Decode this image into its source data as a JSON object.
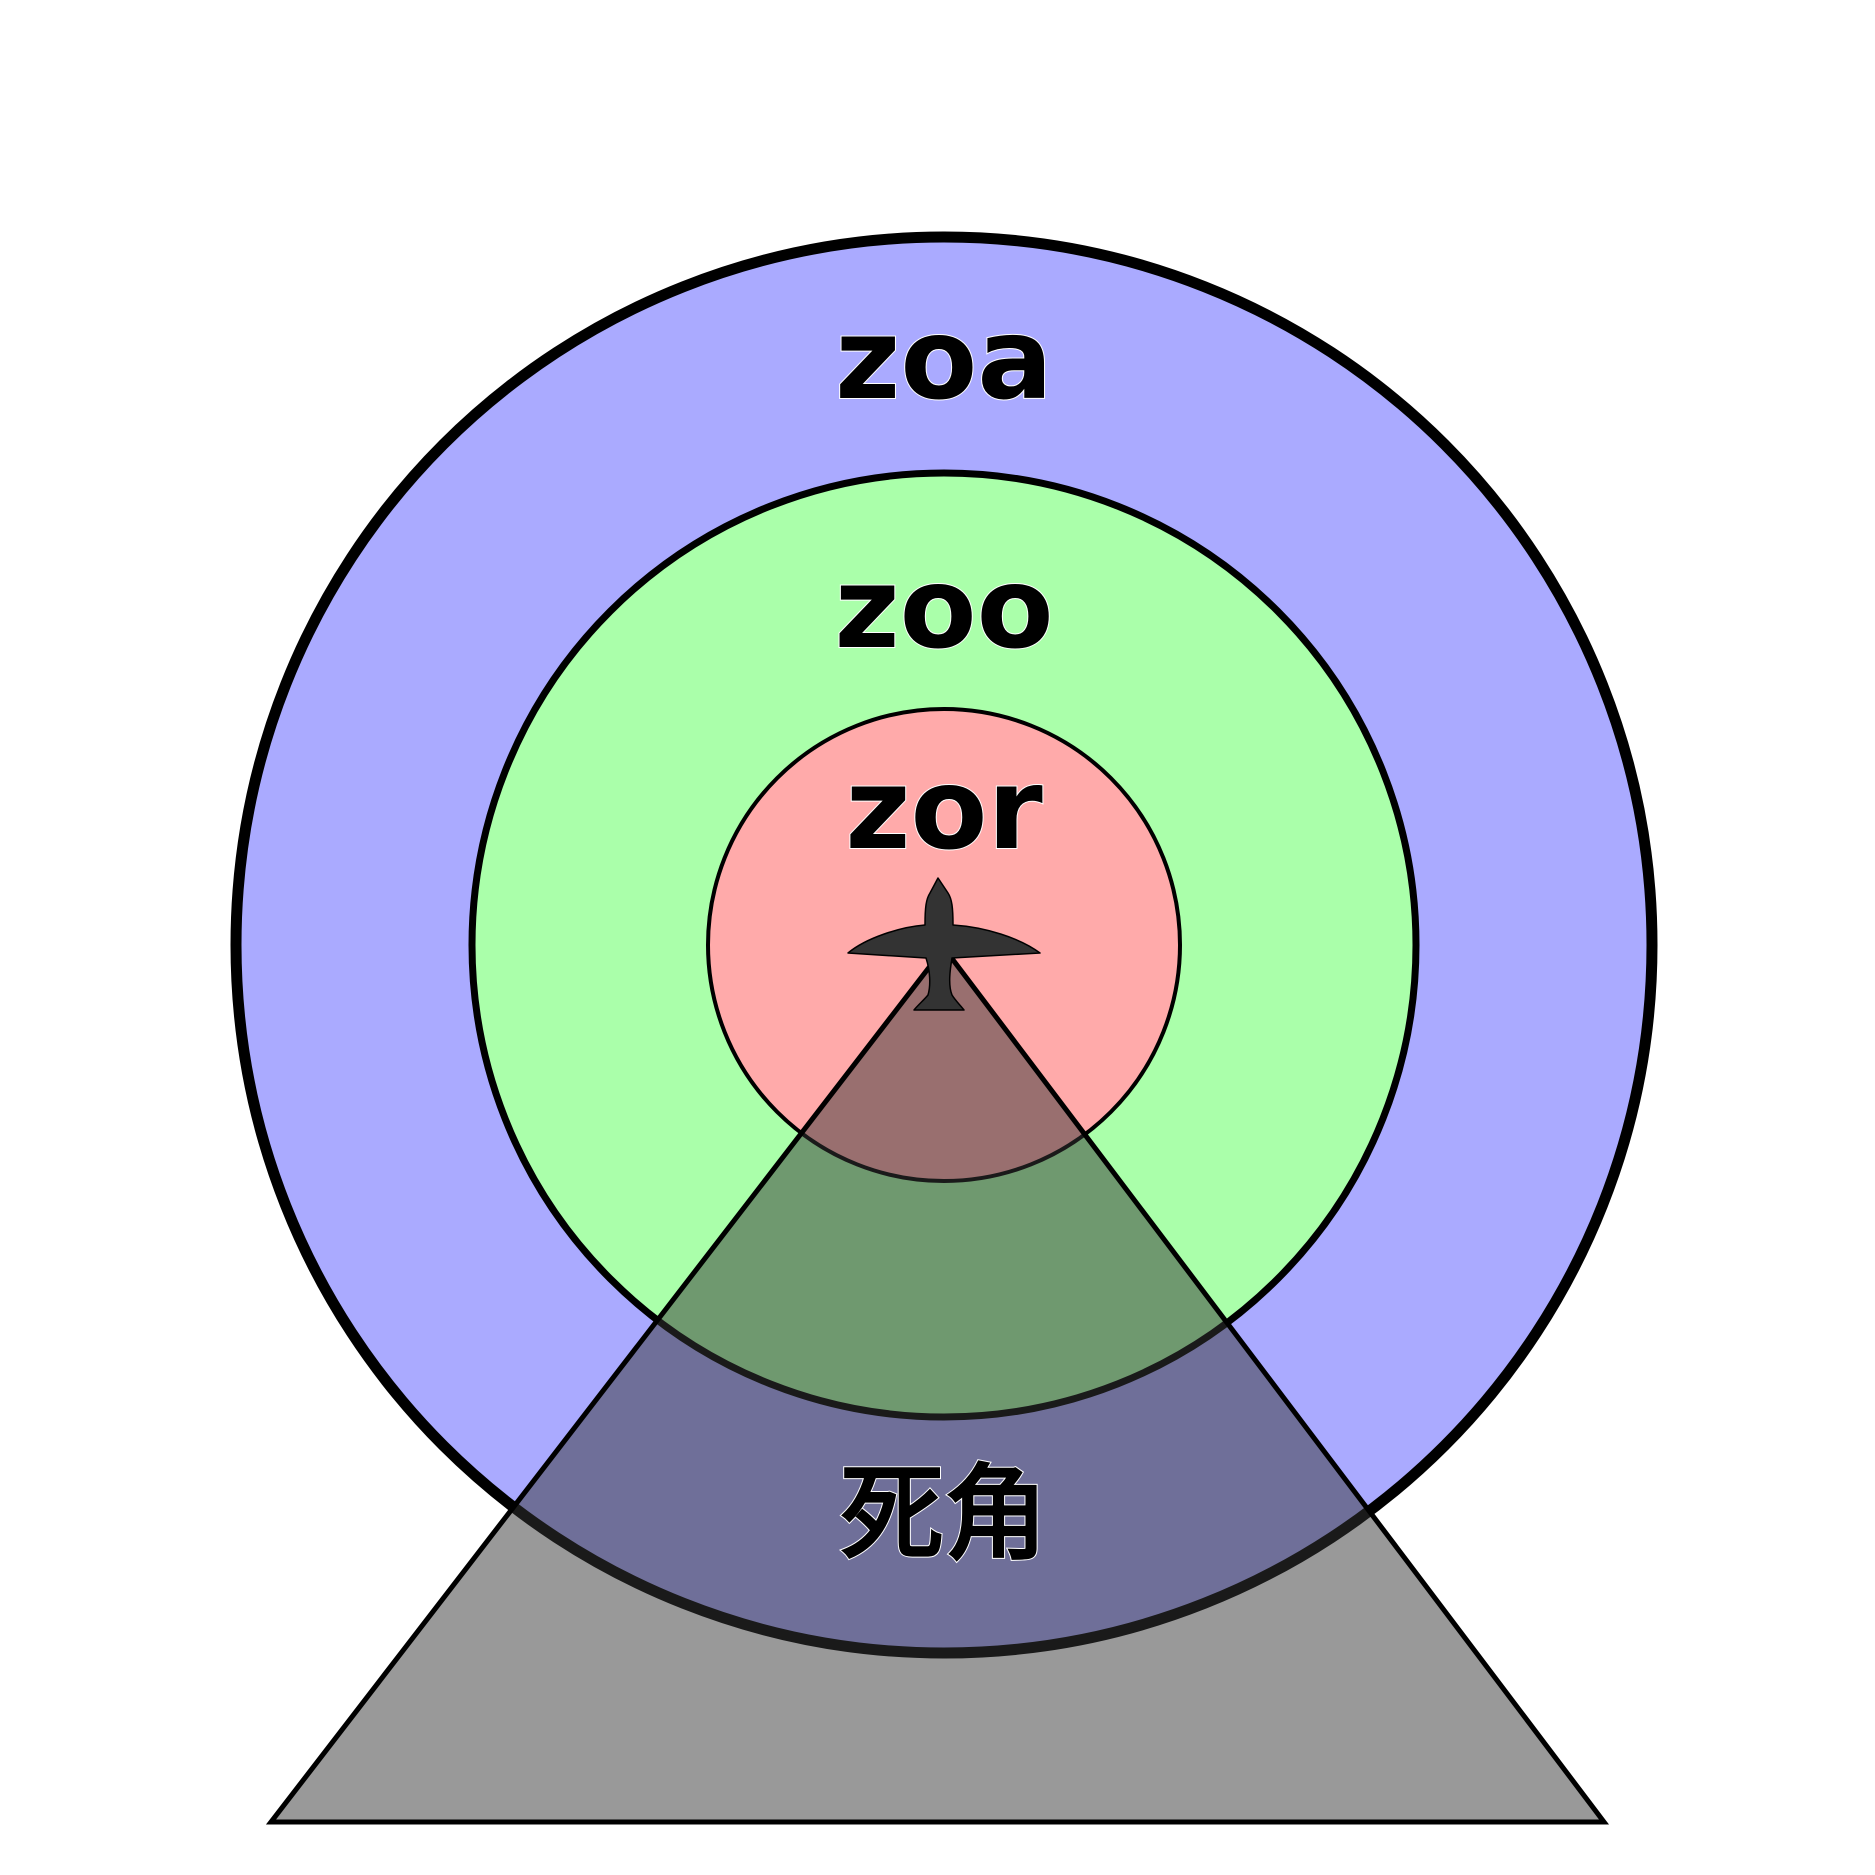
{
  "zones": {
    "attraction": {
      "label": "zoa",
      "color": "#aaaaff"
    },
    "orientation": {
      "label": "zoo",
      "color": "#aaffaa"
    },
    "repulsion": {
      "label": "zor",
      "color": "#ffaaaa"
    }
  },
  "blind_spot": {
    "label": "死角",
    "color": "#333333"
  },
  "icons": {
    "agent": "airplane-icon"
  }
}
